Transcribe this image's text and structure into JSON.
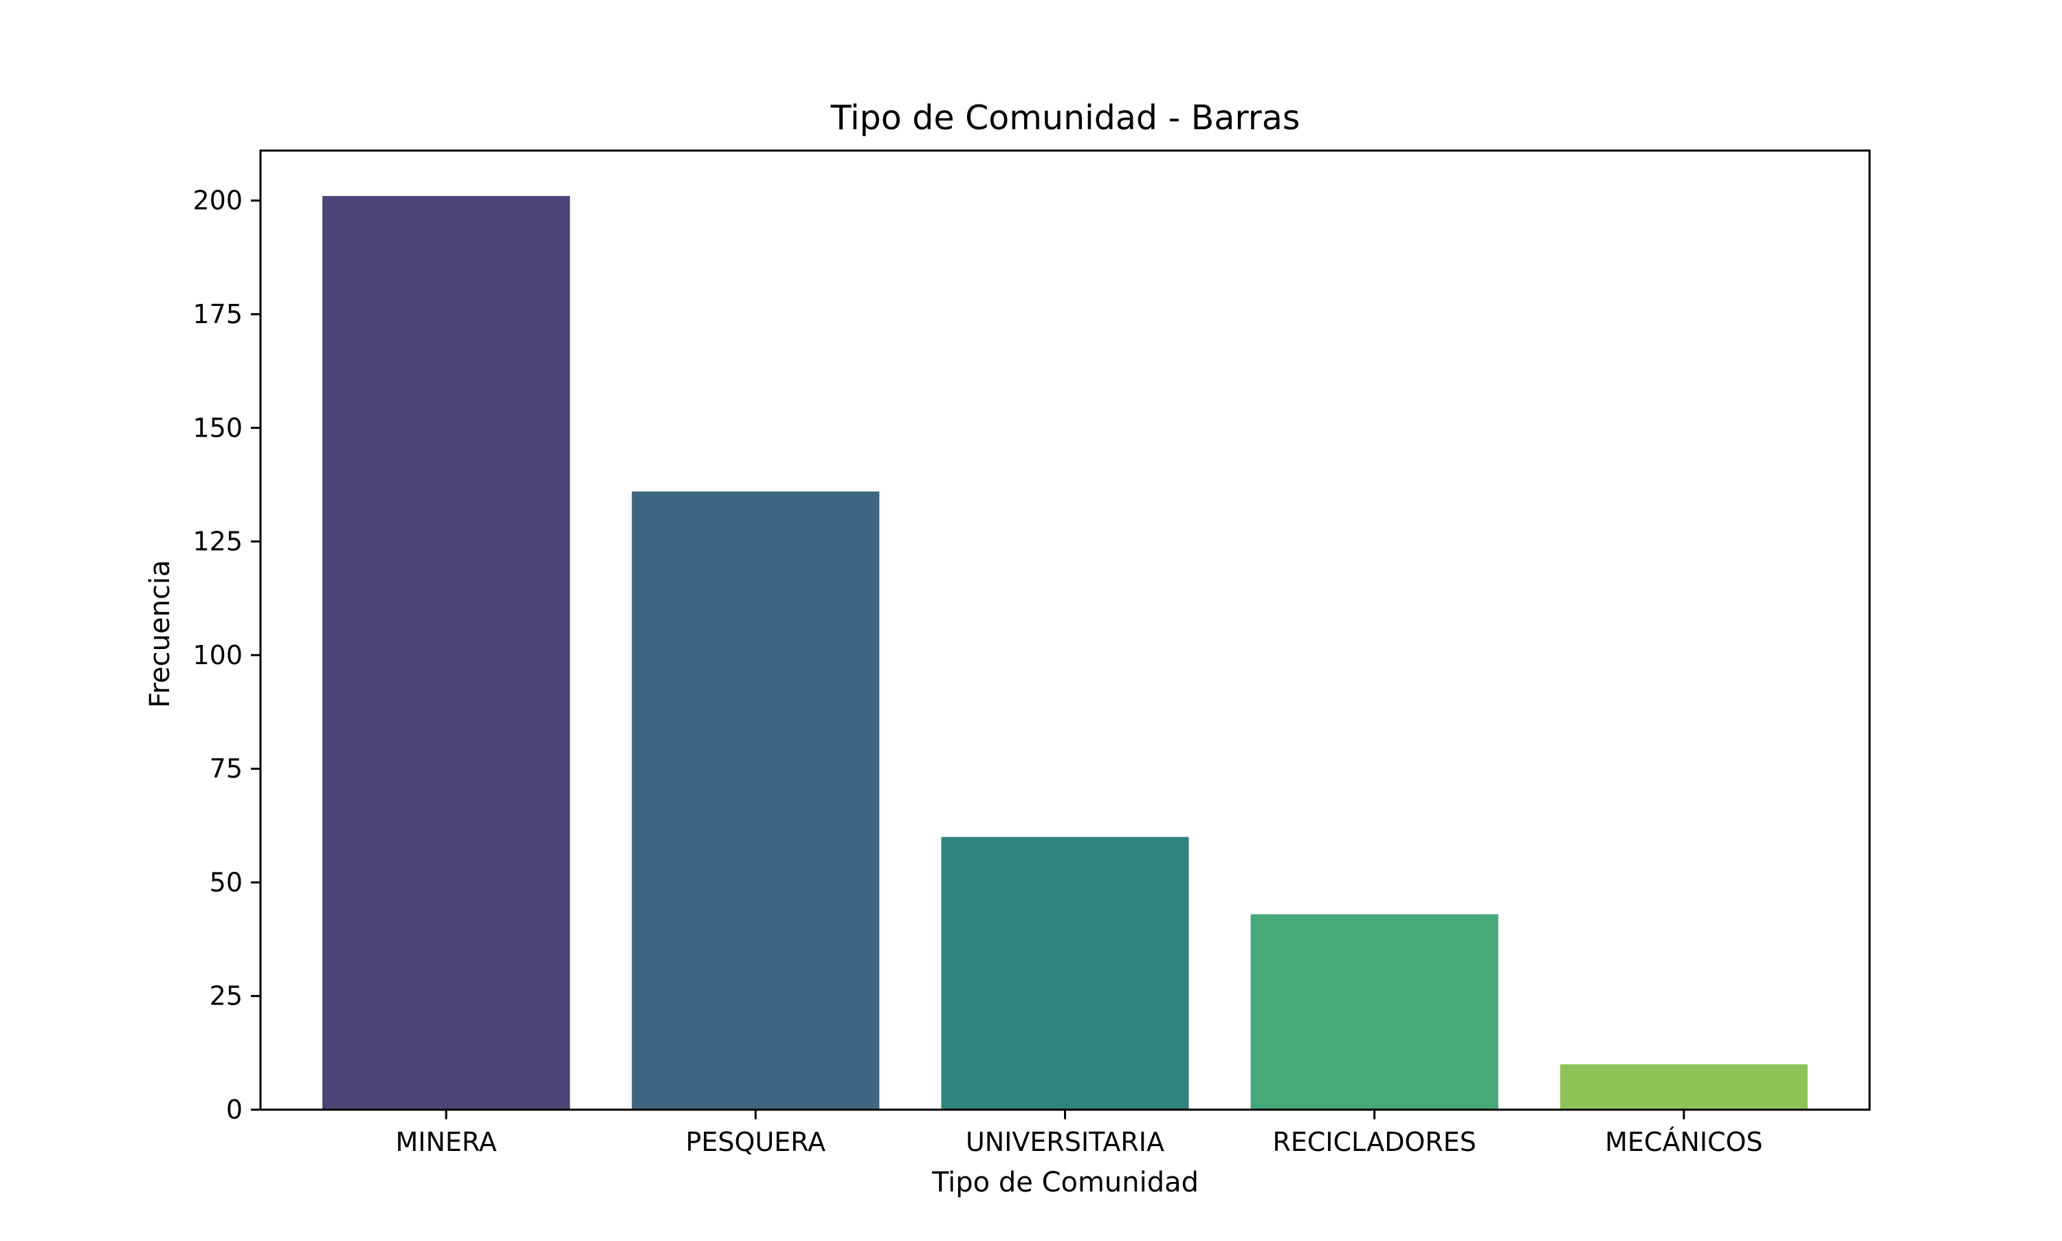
{
  "chart_data": {
    "type": "bar",
    "title": "Tipo de Comunidad - Barras",
    "xlabel": "Tipo de Comunidad",
    "ylabel": "Frecuencia",
    "categories": [
      "MINERA",
      "PESQUERA",
      "UNIVERSITARIA",
      "RECICLADORES",
      "MECÁNICOS"
    ],
    "values": [
      201,
      136,
      60,
      43,
      10
    ],
    "colors": [
      "#4a4477",
      "#3f6680",
      "#2f847d",
      "#47a878",
      "#8dc459"
    ],
    "ylim": [
      0,
      211
    ],
    "yticks": [
      "0",
      "25",
      "50",
      "75",
      "100",
      "125",
      "150",
      "175",
      "200"
    ],
    "grid": false,
    "legend": false
  }
}
